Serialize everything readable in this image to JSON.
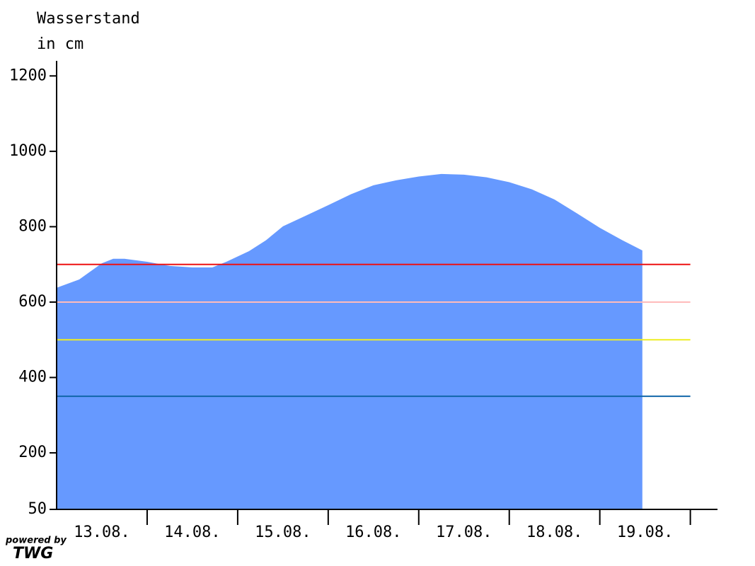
{
  "chart_data": {
    "type": "area",
    "ylabel": [
      "Wasserstand",
      "in cm"
    ],
    "categories": [
      "13.08.",
      "14.08.",
      "15.08.",
      "16.08.",
      "17.08.",
      "18.08.",
      "19.08."
    ],
    "x": [
      0,
      0.25,
      0.5,
      0.625,
      0.75,
      1,
      1.25,
      1.5,
      1.72,
      1.875,
      2.125,
      2.3125,
      2.5,
      2.75,
      3,
      3.25,
      3.5,
      3.75,
      4,
      4.25,
      4.5,
      4.75,
      5,
      5.25,
      5.5,
      5.75,
      6,
      6.25,
      6.47
    ],
    "series": [
      {
        "color": "#6699ff",
        "values": [
          638,
          660,
          703,
          715,
          715,
          707,
          696,
          692,
          692,
          707,
          735,
          764,
          801,
          829,
          857,
          886,
          910,
          923,
          933,
          940,
          938,
          931,
          918,
          899,
          872,
          835,
          797,
          764,
          737
        ]
      }
    ],
    "thresholds": [
      {
        "value": 700,
        "color": "#ee1111"
      },
      {
        "value": 600,
        "color": "#ffbbbb"
      },
      {
        "value": 500,
        "color": "#eeee22"
      },
      {
        "value": 350,
        "color": "#1166aa"
      }
    ],
    "xlim": [
      0,
      7.3
    ],
    "ylim": [
      50,
      1240
    ],
    "yticks": [
      50,
      200,
      400,
      600,
      800,
      1000,
      1200
    ],
    "logo": [
      "powered by",
      "TWG"
    ]
  }
}
